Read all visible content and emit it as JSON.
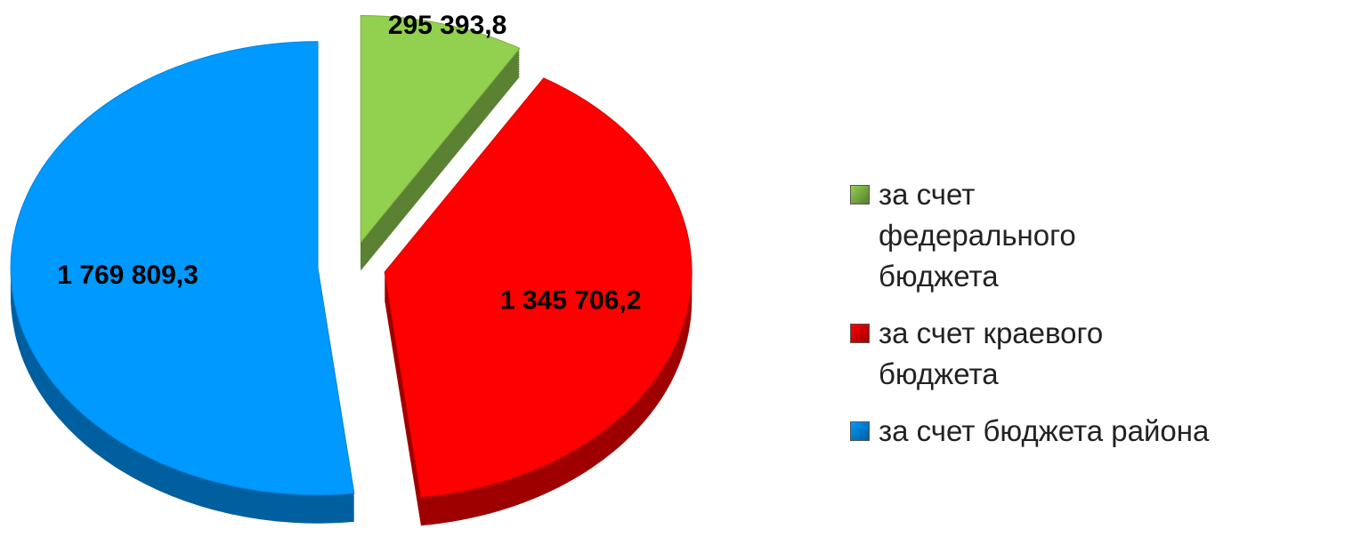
{
  "chart_data": {
    "type": "pie",
    "categories": [
      "за счет федерального бюджета",
      "за счет краевого бюджета",
      "за счет бюджета района"
    ],
    "values": [
      295393.8,
      1345706.2,
      1769809.3
    ],
    "value_labels": [
      "295 393,8",
      "1 345 706,2",
      "1 769 809,3"
    ],
    "colors": [
      "#92d050",
      "#ff0000",
      "#0099ff"
    ],
    "legend": "right"
  }
}
